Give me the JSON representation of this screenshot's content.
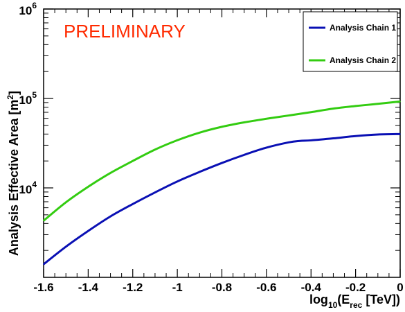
{
  "colors": {
    "series1": "#0a10b4",
    "series2": "#33cc11",
    "annotation": "#ff2a00",
    "axis": "#000000"
  },
  "annotation": "PRELIMINARY",
  "chart_data": {
    "type": "line",
    "title": "",
    "xlabel": {
      "prefix": "log",
      "sub1": "10",
      "mid": "(E",
      "sub2": "rec",
      "suffix": " [TeV])"
    },
    "ylabel": {
      "main": "Analysis Effective Area [m",
      "sup": "2",
      "close": "]"
    },
    "xlim": [
      -1.6,
      0
    ],
    "ylim": [
      1000,
      1000000
    ],
    "yscale": "log",
    "x_ticks": [
      "-1.6",
      "-1.4",
      "-1.2",
      "-1",
      "-0.8",
      "-0.6",
      "-0.4",
      "-0.2",
      "0"
    ],
    "y_ticks": [
      {
        "base": "10",
        "exp": "4",
        "value": 10000
      },
      {
        "base": "10",
        "exp": "5",
        "value": 100000
      },
      {
        "base": "10",
        "exp": "6",
        "value": 1000000
      }
    ],
    "legend_position": "top-right",
    "series": [
      {
        "name": "Analysis Chain 1",
        "x": [
          -1.6,
          -1.5,
          -1.4,
          -1.3,
          -1.2,
          -1.1,
          -1.0,
          -0.9,
          -0.8,
          -0.7,
          -0.6,
          -0.5,
          -0.45,
          -0.4,
          -0.3,
          -0.2,
          -0.1,
          0.0
        ],
        "y": [
          1400,
          2200,
          3300,
          4800,
          6600,
          8900,
          11800,
          15100,
          19000,
          23400,
          28200,
          32300,
          33500,
          34000,
          35800,
          38000,
          39500,
          40000
        ]
      },
      {
        "name": "Analysis Chain 2",
        "x": [
          -1.6,
          -1.5,
          -1.4,
          -1.3,
          -1.2,
          -1.1,
          -1.0,
          -0.9,
          -0.8,
          -0.7,
          -0.6,
          -0.5,
          -0.4,
          -0.3,
          -0.2,
          -0.1,
          0.0
        ],
        "y": [
          4300,
          6900,
          10300,
          14700,
          20000,
          26800,
          34100,
          41500,
          48200,
          54000,
          59300,
          64500,
          70300,
          77000,
          82300,
          87000,
          92500
        ]
      }
    ]
  }
}
